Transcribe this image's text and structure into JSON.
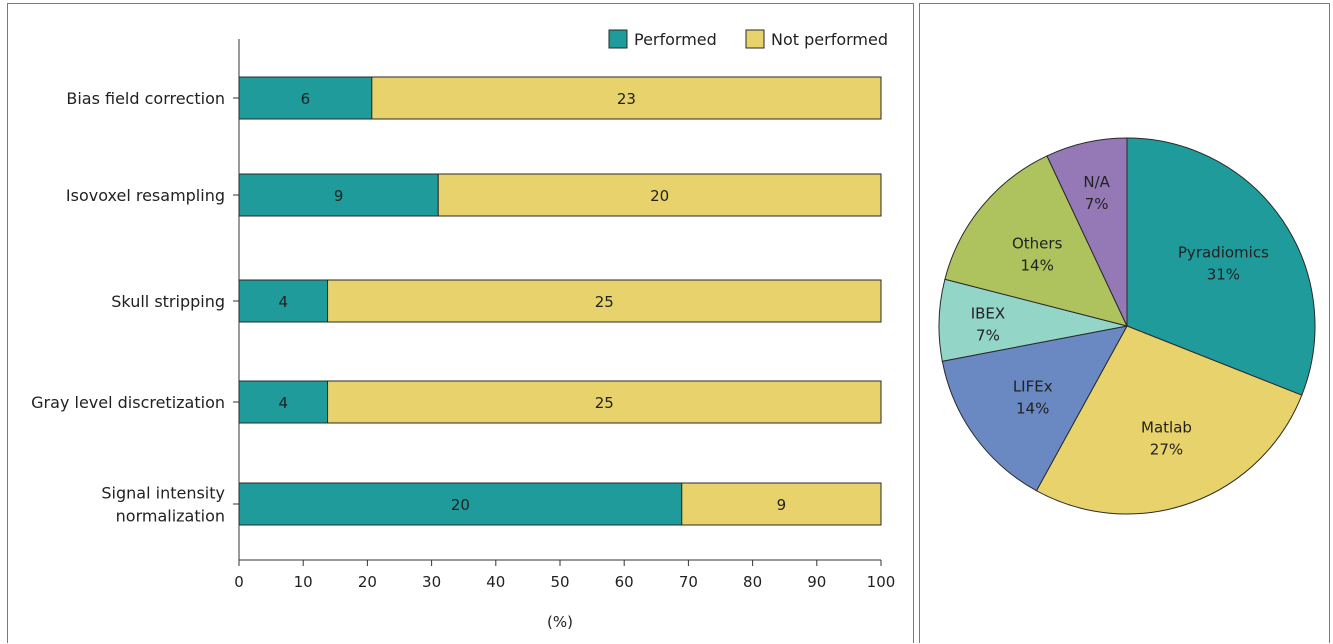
{
  "chart_data": [
    {
      "type": "bar",
      "stacked": true,
      "orientation": "horizontal",
      "categories": [
        [
          "Bias field correction"
        ],
        [
          "Isovoxel resampling"
        ],
        [
          "Skull stripping"
        ],
        [
          "Gray level discretization"
        ],
        [
          "Signal intensity",
          "normalization"
        ]
      ],
      "series": [
        {
          "name": "Performed",
          "color": "#1f9b9b",
          "values": [
            6,
            9,
            4,
            4,
            20
          ]
        },
        {
          "name": "Not performed",
          "color": "#e8d26c",
          "values": [
            23,
            20,
            25,
            25,
            9
          ]
        }
      ],
      "xlabel": "(%)",
      "xlim": [
        0,
        100
      ],
      "xticks": [
        "0",
        "10",
        "20",
        "30",
        "40",
        "50",
        "60",
        "70",
        "80",
        "90",
        "100"
      ],
      "legend": "top-right",
      "grid": false
    },
    {
      "type": "pie",
      "slices": [
        {
          "label": "Pyradiomics",
          "value": 31,
          "value_label": "31%",
          "color": "#1f9b9b"
        },
        {
          "label": "Matlab",
          "value": 27,
          "value_label": "27%",
          "color": "#e8d26c"
        },
        {
          "label": "LIFEx",
          "value": 14,
          "value_label": "14%",
          "color": "#6a88c2"
        },
        {
          "label": "IBEX",
          "value": 7,
          "value_label": "7%",
          "color": "#93d6c8"
        },
        {
          "label": "Others",
          "value": 14,
          "value_label": "14%",
          "color": "#aec25e"
        },
        {
          "label": "N/A",
          "value": 7,
          "value_label": "7%",
          "color": "#9579b6"
        }
      ]
    }
  ]
}
